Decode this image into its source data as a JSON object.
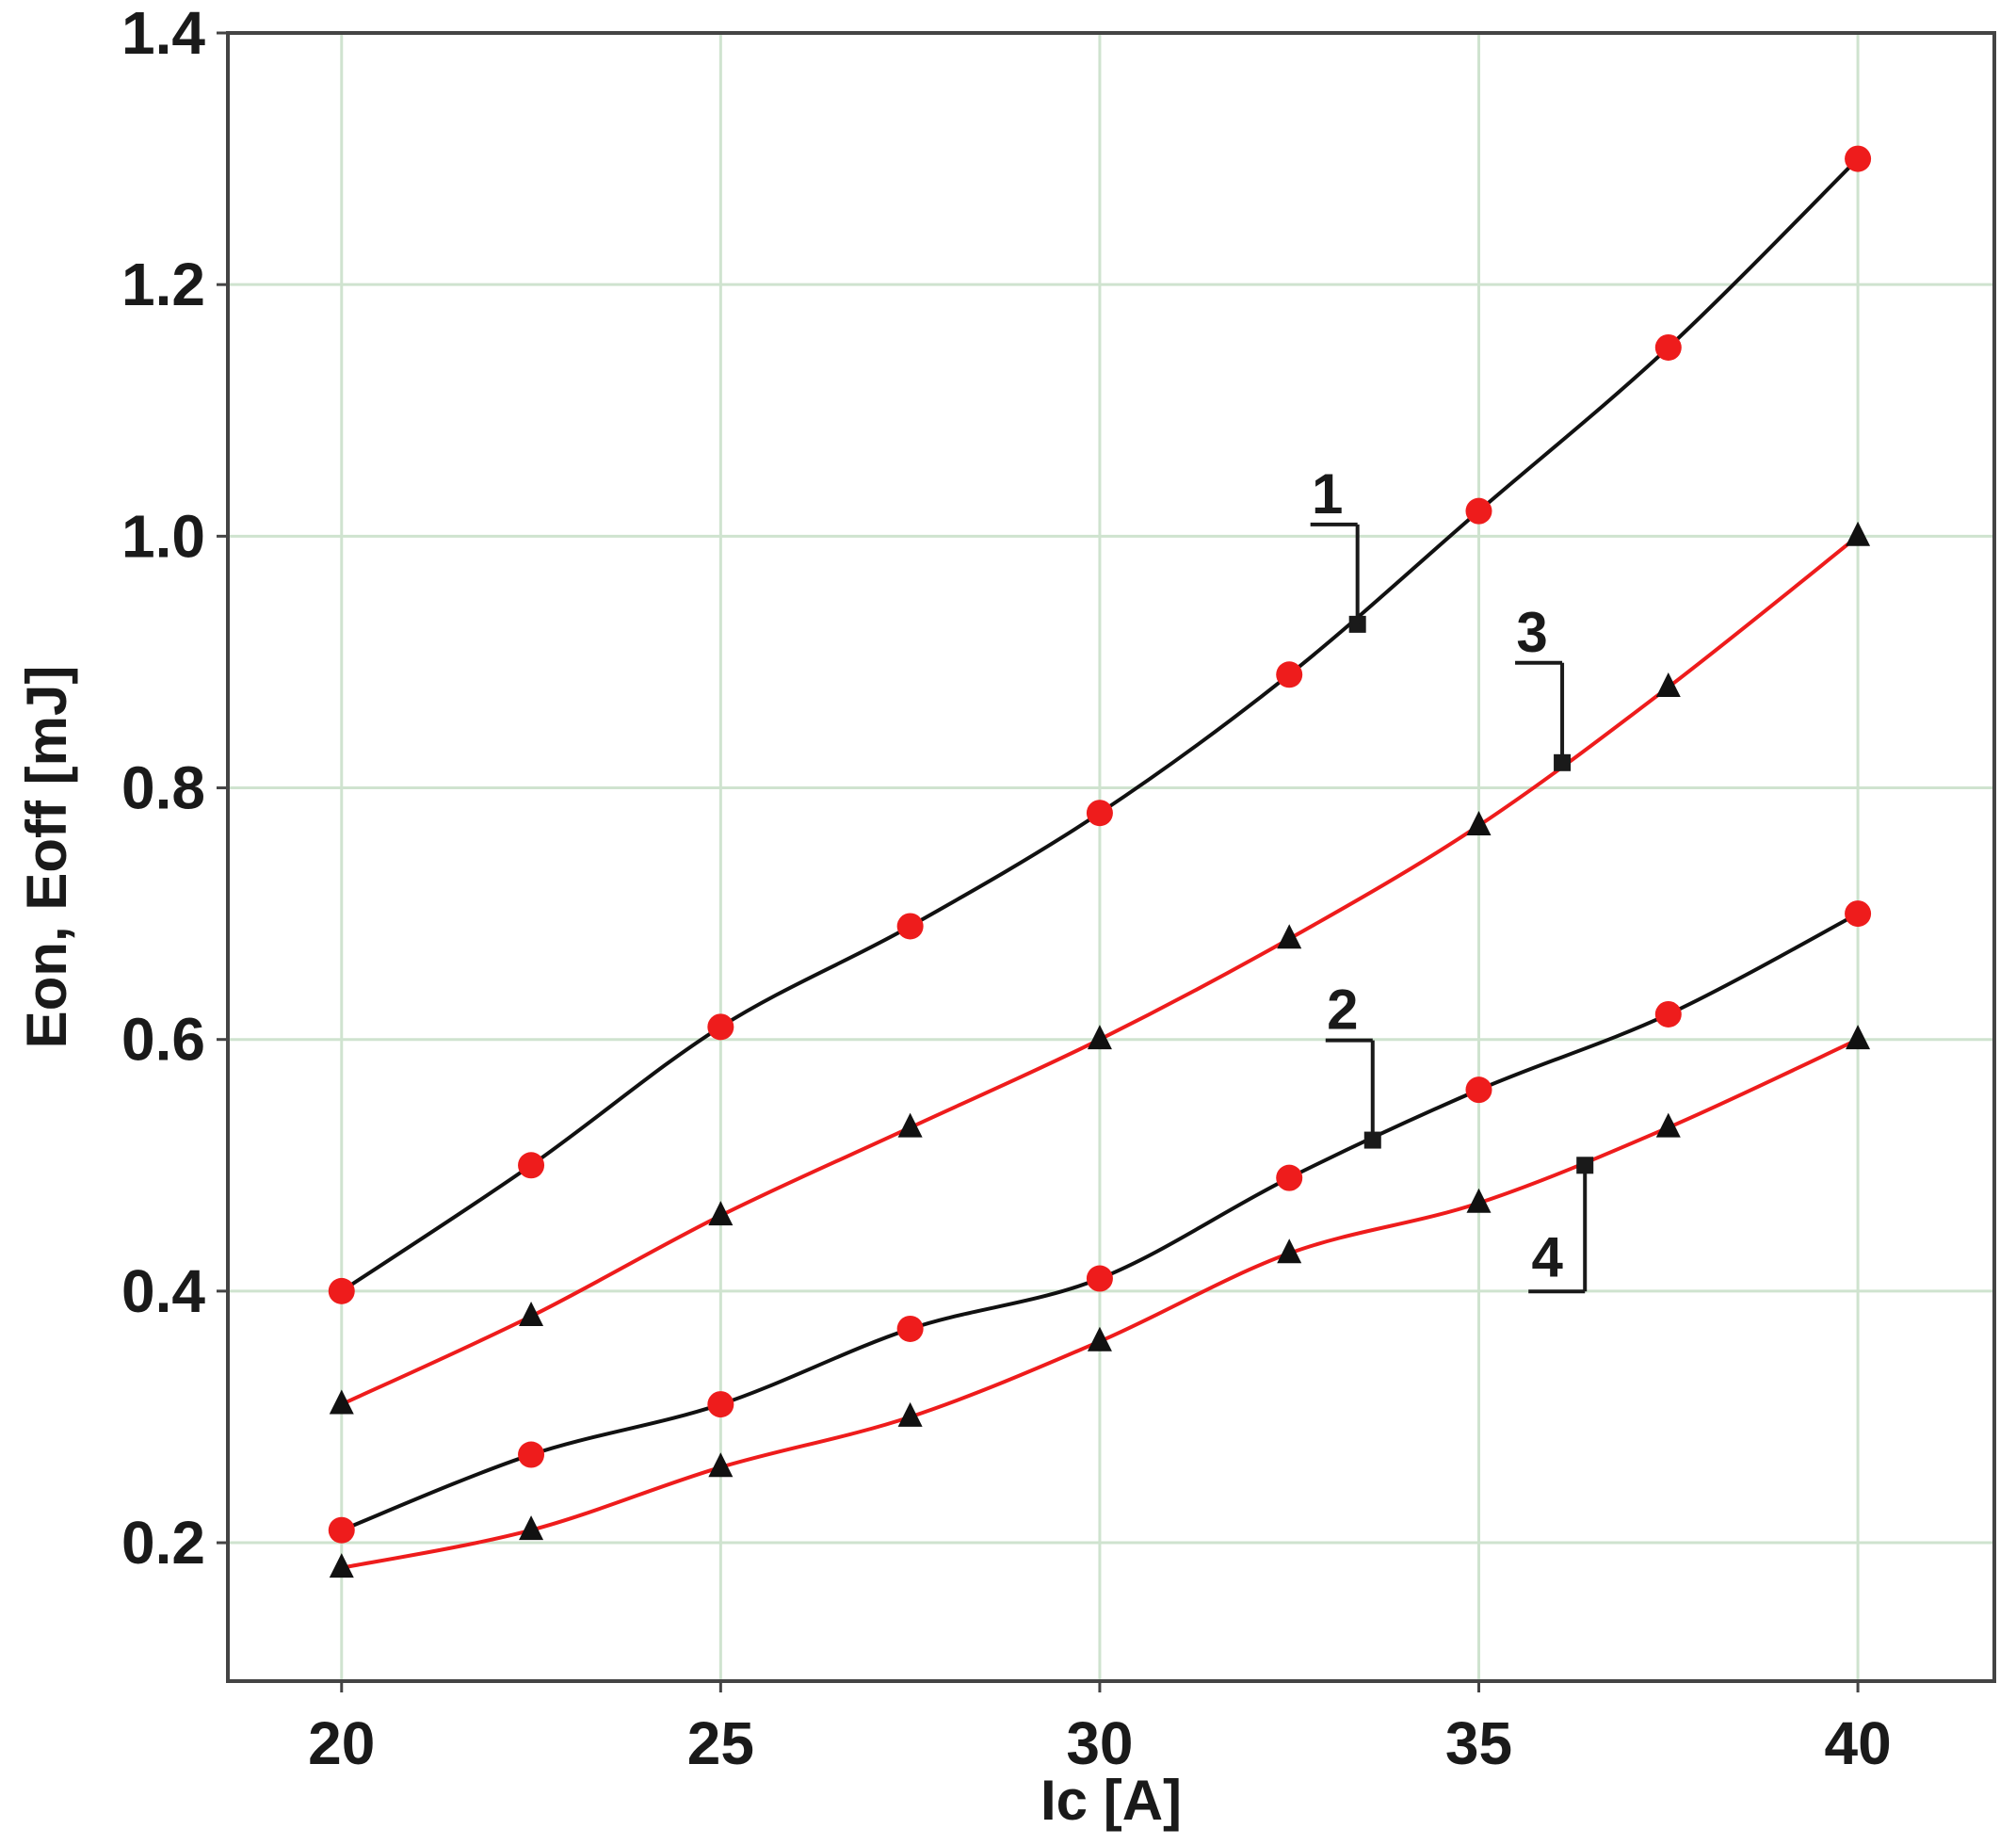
{
  "chart_data": {
    "type": "line",
    "xlabel": "Ic [A]",
    "ylabel": "Eon, Eoff [mJ]",
    "xlim": [
      18.5,
      41.8
    ],
    "ylim": [
      0.09,
      1.4
    ],
    "x_ticks": [
      20,
      25,
      30,
      35,
      40
    ],
    "y_ticks": [
      0.2,
      0.4,
      0.6,
      0.8,
      1.0,
      1.2,
      1.4
    ],
    "x_tick_labels": [
      "20",
      "25",
      "30",
      "35",
      "40"
    ],
    "y_tick_labels": [
      "0.2",
      "0.4",
      "0.6",
      "0.8",
      "1.0",
      "1.2",
      "1.4"
    ],
    "grid": true,
    "grid_color": "#cfe3cf",
    "x": [
      20,
      22.5,
      25,
      27.5,
      30,
      32.5,
      35,
      37.5,
      40
    ],
    "series": [
      {
        "label": "1",
        "color": "#111111",
        "marker": "circle",
        "marker_color": "#ee1c1c",
        "values": [
          0.4,
          0.5,
          0.61,
          0.69,
          0.78,
          0.89,
          1.02,
          1.15,
          1.3
        ],
        "callout": {
          "x": 33.4,
          "y": 0.93
        }
      },
      {
        "label": "3",
        "color": "#ee1c1c",
        "marker": "triangle",
        "marker_color": "#111111",
        "values": [
          0.31,
          0.38,
          0.46,
          0.53,
          0.6,
          0.68,
          0.77,
          0.88,
          1.0
        ],
        "callout": {
          "x": 36.1,
          "y": 0.82
        }
      },
      {
        "label": "2",
        "color": "#111111",
        "marker": "circle",
        "marker_color": "#ee1c1c",
        "values": [
          0.21,
          0.27,
          0.31,
          0.37,
          0.41,
          0.49,
          0.56,
          0.62,
          0.7
        ],
        "callout": {
          "x": 33.6,
          "y": 0.52
        }
      },
      {
        "label": "4",
        "color": "#ee1c1c",
        "marker": "triangle",
        "marker_color": "#111111",
        "values": [
          0.18,
          0.21,
          0.26,
          0.3,
          0.36,
          0.43,
          0.47,
          0.53,
          0.6
        ],
        "callout": {
          "x": 36.4,
          "y": 0.5
        }
      }
    ]
  }
}
